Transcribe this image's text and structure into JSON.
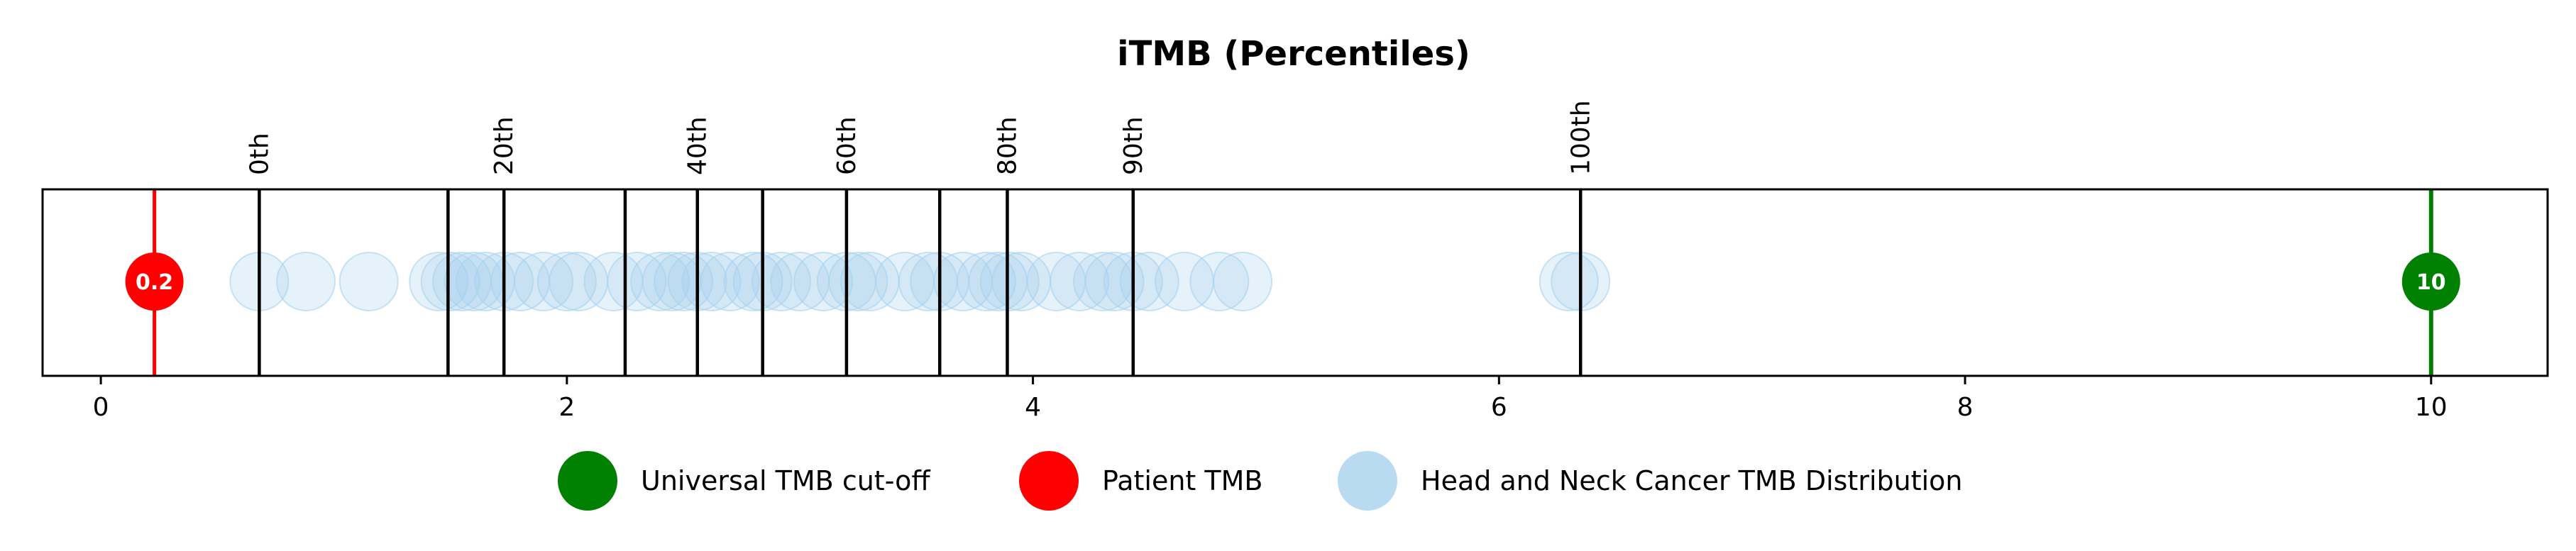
{
  "chart_data": {
    "type": "scatter",
    "title": "iTMB (Percentiles)",
    "xlabel": "",
    "ylabel": "",
    "xlim": [
      -0.25,
      10.5
    ],
    "x_ticks": [
      0,
      2,
      4,
      6,
      8,
      10
    ],
    "grid": false,
    "legend_position": "bottom-center",
    "colors": {
      "cutoff": "#008000",
      "patient": "#ff0000",
      "distribution": "#a6d2ee",
      "percentile_line": "#000000"
    },
    "cutoff": {
      "value": 10,
      "label": "10"
    },
    "patient": {
      "value": 0.23,
      "label": "0.2"
    },
    "percentiles": [
      {
        "label": "0th",
        "value": 0.68
      },
      {
        "label": "",
        "value": 1.49
      },
      {
        "label": "20th",
        "value": 1.73
      },
      {
        "label": "",
        "value": 2.25
      },
      {
        "label": "40th",
        "value": 2.56
      },
      {
        "label": "",
        "value": 2.84
      },
      {
        "label": "60th",
        "value": 3.2
      },
      {
        "label": "",
        "value": 3.6
      },
      {
        "label": "80th",
        "value": 3.89
      },
      {
        "label": "90th",
        "value": 4.43
      },
      {
        "label": "100th",
        "value": 6.35
      }
    ],
    "series": [
      {
        "name": "Head and Neck Cancer TMB Distribution",
        "values": [
          0.68,
          0.88,
          1.15,
          1.45,
          1.5,
          1.55,
          1.6,
          1.65,
          1.73,
          1.8,
          1.9,
          2.0,
          2.05,
          2.2,
          2.3,
          2.4,
          2.45,
          2.5,
          2.56,
          2.62,
          2.7,
          2.8,
          2.84,
          2.92,
          3.0,
          3.1,
          3.2,
          3.25,
          3.3,
          3.45,
          3.55,
          3.6,
          3.7,
          3.8,
          3.85,
          3.9,
          3.95,
          4.1,
          4.2,
          4.3,
          4.35,
          4.43,
          4.5,
          4.65,
          4.8,
          4.9,
          6.3,
          6.35
        ]
      }
    ],
    "legend": [
      {
        "key": "cutoff",
        "label": "Universal TMB cut-off"
      },
      {
        "key": "patient",
        "label": "Patient TMB"
      },
      {
        "key": "distribution",
        "label": "Head and Neck Cancer TMB Distribution"
      }
    ]
  }
}
